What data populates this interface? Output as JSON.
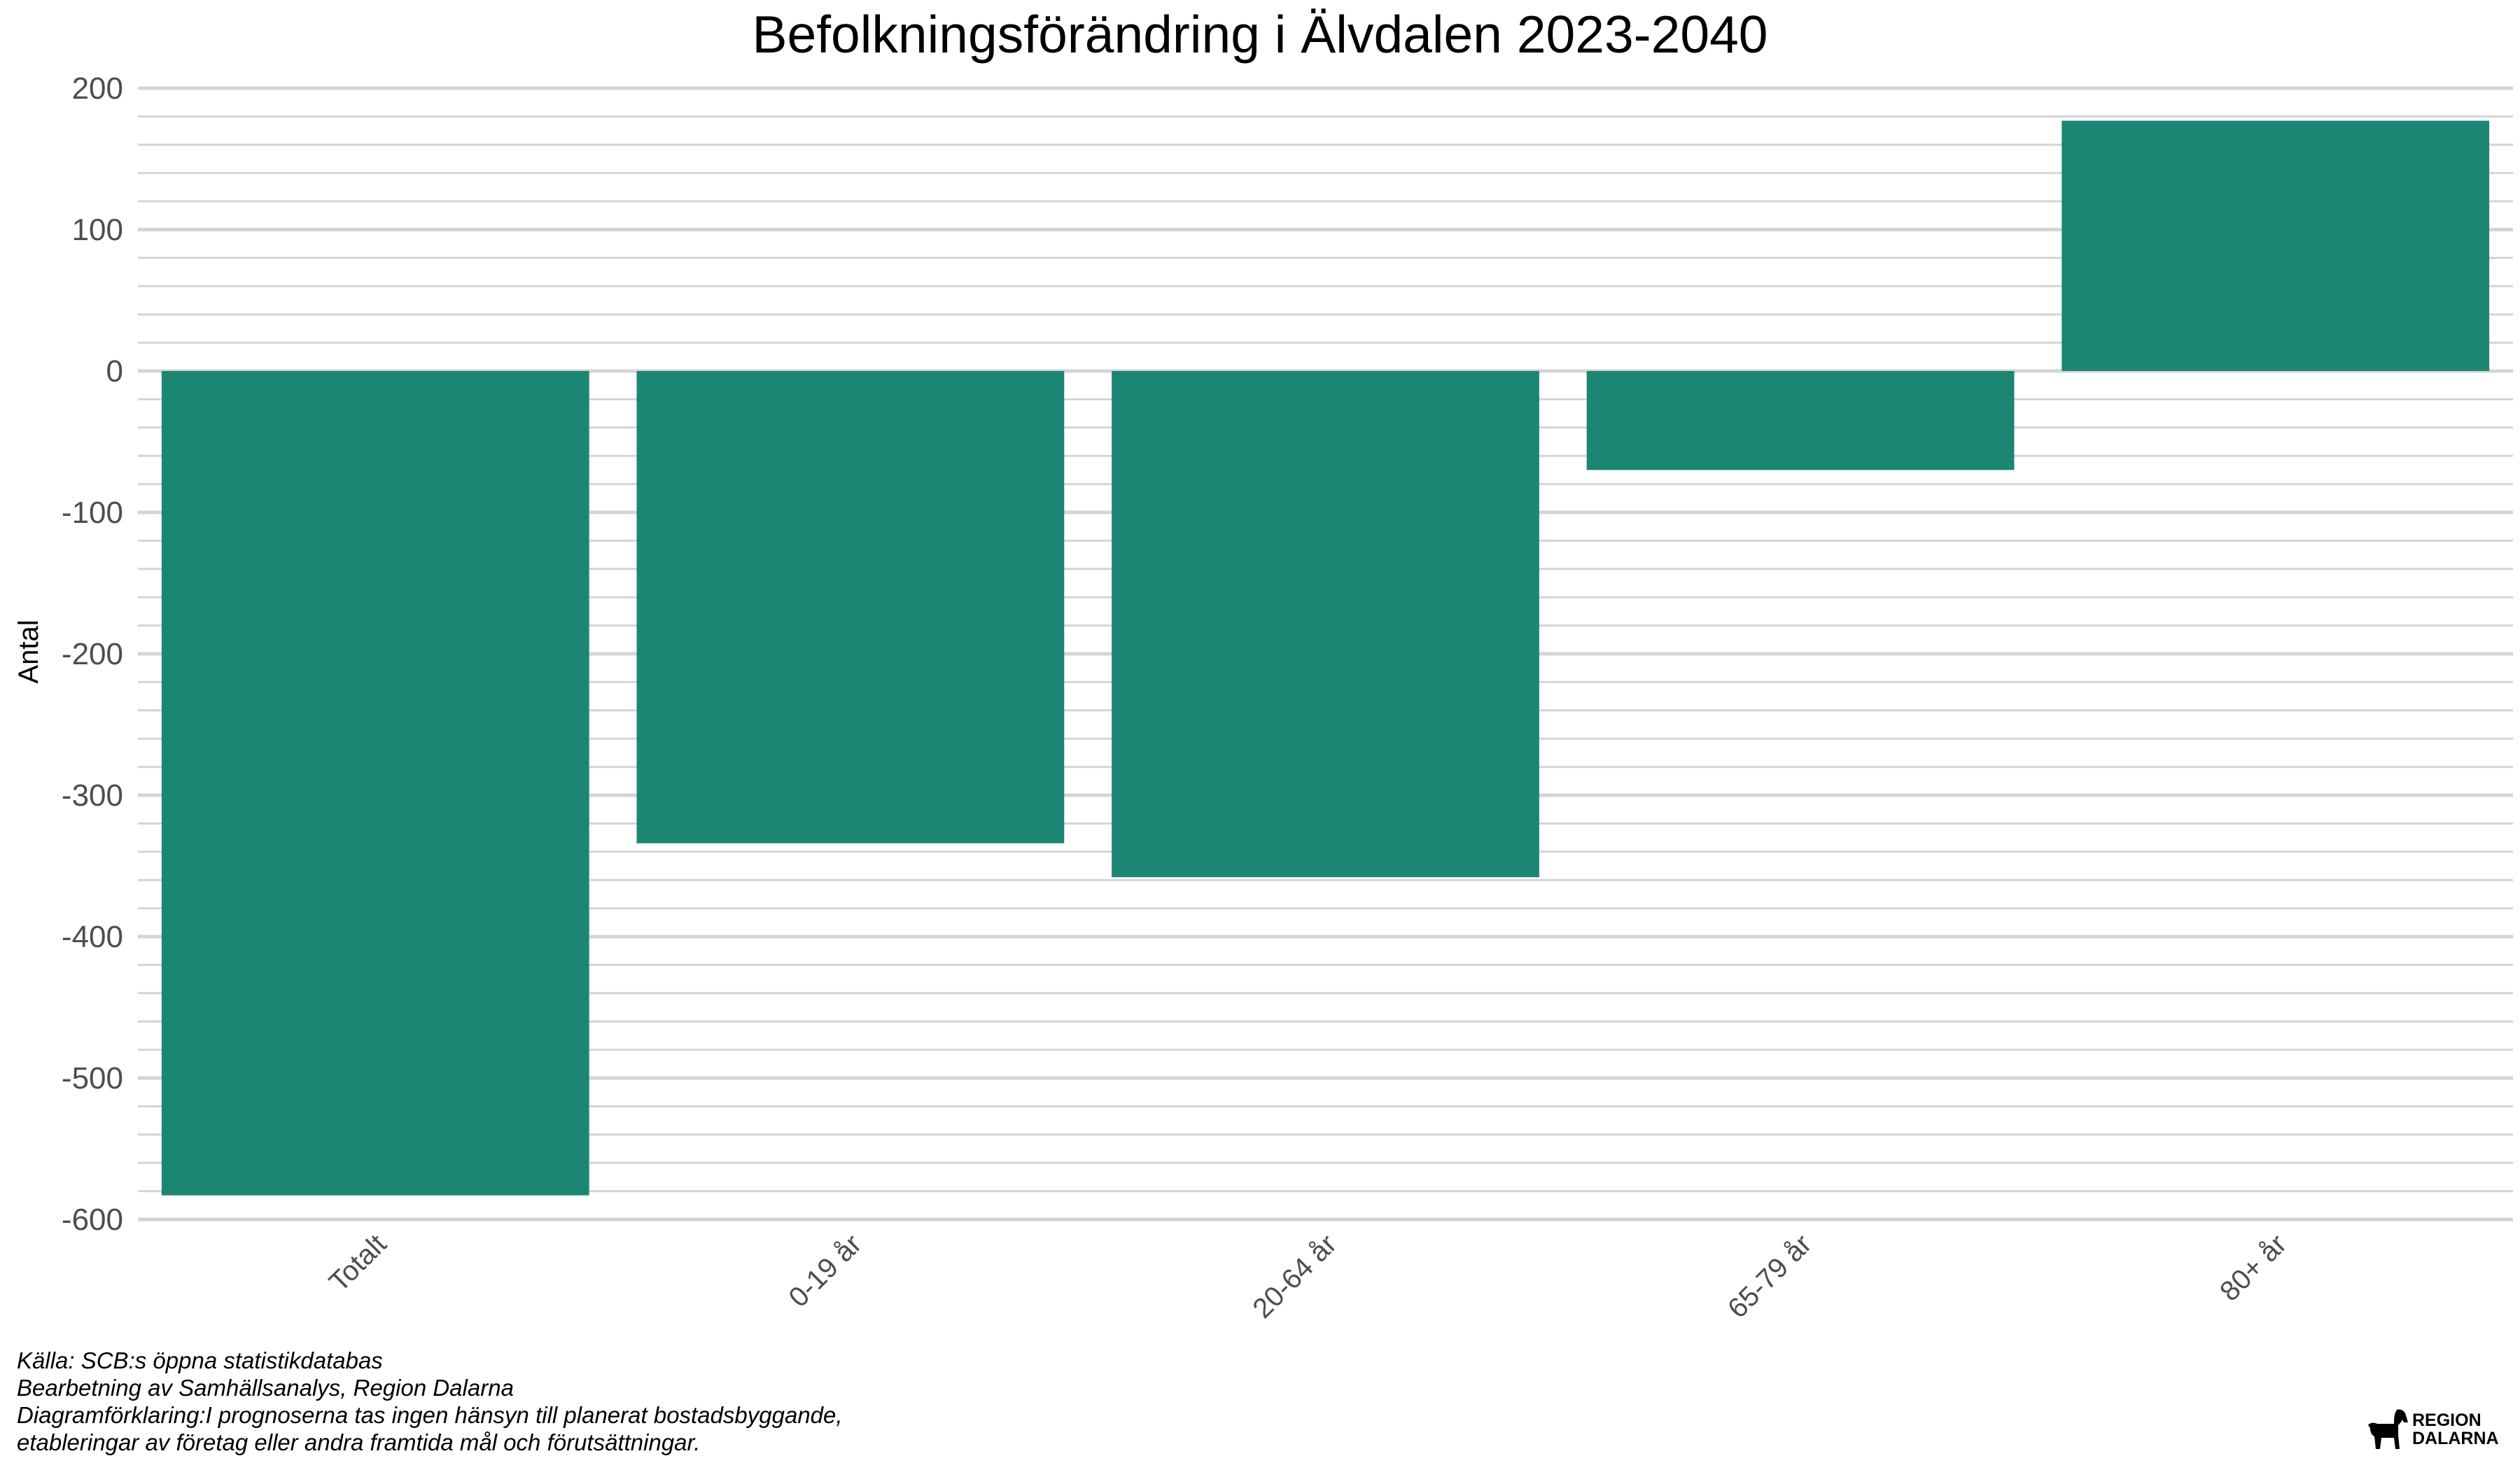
{
  "chart_data": {
    "type": "bar",
    "title": "Befolkningsförändring i Älvdalen 2023-2040",
    "xlabel": "",
    "ylabel": "Antal",
    "categories": [
      "Totalt",
      "0-19 år",
      "20-64 år",
      "65-79 år",
      "80+ år"
    ],
    "values": [
      -583,
      -334,
      -358,
      -70,
      177
    ],
    "ylim": [
      -600,
      200
    ],
    "yticks": [
      200,
      100,
      0,
      -100,
      -200,
      -300,
      -400,
      -500,
      -600
    ],
    "minor_grid_step": 20,
    "grid": true,
    "legend": "none",
    "bar_color": "#1a8673",
    "grid_color": "#d4d4d4"
  },
  "caption": {
    "source": "Källa: SCB:s öppna statistikdatabas",
    "processing": "Bearbetning av Samhällsanalys, Region Dalarna",
    "explanation_line1": "Diagramförklaring:I prognoserna tas ingen hänsyn till planerat bostadsbyggande,",
    "explanation_line2": "etableringar av företag eller andra framtida mål och förutsättningar."
  },
  "logo": {
    "line1": "REGION",
    "line2": "DALARNA",
    "icon": "dalahorse-icon"
  }
}
